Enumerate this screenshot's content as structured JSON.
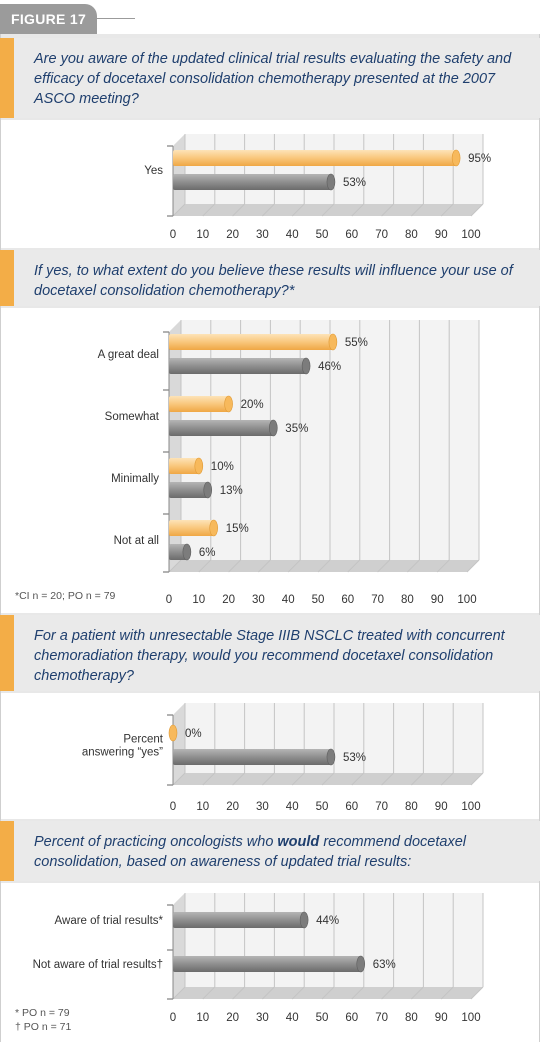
{
  "figure_label": "FIGURE 17",
  "colors": {
    "accent": "#f3ad47",
    "orange_bar": "#f9c77c",
    "gray_bar": "#8f8f8f",
    "question_text": "#1f3f6e"
  },
  "chart_data": [
    {
      "type": "bar",
      "orientation": "horizontal",
      "title": "Are you aware of the updated clinical trial results evaluating the safety and efficacy of docetaxel consolidation chemotherapy presented at the 2007 ASCO meeting?",
      "categories": [
        "Yes"
      ],
      "series": [
        {
          "values": [
            95
          ],
          "color": "orange"
        },
        {
          "values": [
            53
          ],
          "color": "gray"
        }
      ],
      "data_labels": [
        [
          "95%"
        ],
        [
          "53%"
        ]
      ],
      "xlim": [
        0,
        100
      ],
      "xticks": [
        0,
        10,
        20,
        30,
        40,
        50,
        60,
        70,
        80,
        90,
        100
      ],
      "grid": true,
      "note": ""
    },
    {
      "type": "bar",
      "orientation": "horizontal",
      "title": "If yes, to what extent do you believe these results will influence your use of docetaxel consolidation chemotherapy?*",
      "categories": [
        "A great deal",
        "Somewhat",
        "Minimally",
        "Not at all"
      ],
      "series": [
        {
          "values": [
            55,
            20,
            10,
            15
          ],
          "color": "orange"
        },
        {
          "values": [
            46,
            35,
            13,
            6
          ],
          "color": "gray"
        }
      ],
      "data_labels": [
        [
          "55%",
          "20%",
          "10%",
          "15%"
        ],
        [
          "46%",
          "35%",
          "13%",
          "6%"
        ]
      ],
      "xlim": [
        0,
        100
      ],
      "xticks": [
        0,
        10,
        20,
        30,
        40,
        50,
        60,
        70,
        80,
        90,
        100
      ],
      "grid": true,
      "note": "*CI n = 20; PO n = 79"
    },
    {
      "type": "bar",
      "orientation": "horizontal",
      "title": "For a patient with unresectable Stage IIIB NSCLC treated with concurrent chemoradiation therapy, would you recommend docetaxel consolidation chemotherapy?",
      "categories": [
        "Percent answering “yes”"
      ],
      "series": [
        {
          "values": [
            0
          ],
          "color": "orange"
        },
        {
          "values": [
            53
          ],
          "color": "gray"
        }
      ],
      "data_labels": [
        [
          "0%"
        ],
        [
          "53%"
        ]
      ],
      "xlim": [
        0,
        100
      ],
      "xticks": [
        0,
        10,
        20,
        30,
        40,
        50,
        60,
        70,
        80,
        90,
        100
      ],
      "grid": true,
      "note": ""
    },
    {
      "type": "bar",
      "orientation": "horizontal",
      "title_pre": "Percent of practicing oncologists who ",
      "title_bold": "would",
      "title_post": " recommend docetaxel consolidation, based on awareness of updated trial results:",
      "categories": [
        "Aware of trial results*",
        "Not aware of trial results†"
      ],
      "series": [
        {
          "values": [
            44,
            63
          ],
          "color": "gray"
        }
      ],
      "data_labels": [
        [
          "44%",
          "63%"
        ]
      ],
      "xlim": [
        0,
        100
      ],
      "xticks": [
        0,
        10,
        20,
        30,
        40,
        50,
        60,
        70,
        80,
        90,
        100
      ],
      "grid": true,
      "notes": [
        "* PO n = 79",
        "† PO n = 71"
      ]
    }
  ]
}
